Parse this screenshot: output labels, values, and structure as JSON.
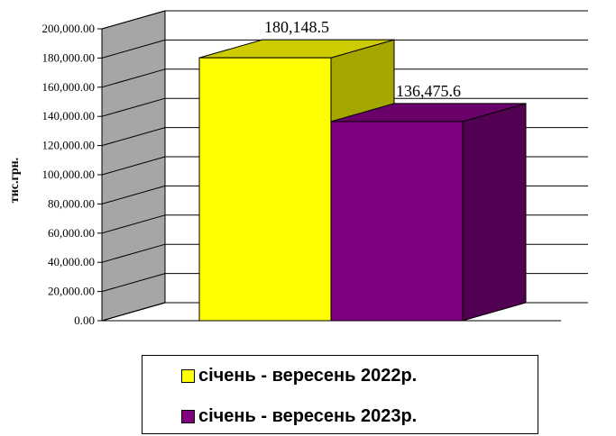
{
  "chart_data": {
    "type": "bar",
    "three_d": true,
    "categories": [
      ""
    ],
    "series": [
      {
        "name": "січень - вересень 2022р.",
        "values": [
          180148.5
        ],
        "label": "180,148.5",
        "color": "#ffff00",
        "side_color": "#a6a600",
        "top_color": "#cccc00"
      },
      {
        "name": "січень - вересень 2023р.",
        "values": [
          136475.6
        ],
        "label": "136,475.6",
        "color": "#800080",
        "side_color": "#520052",
        "top_color": "#6a006a"
      }
    ],
    "ylabel": "тис.грн.",
    "ylim": [
      0,
      200000
    ],
    "yticks": [
      0,
      20000,
      40000,
      60000,
      80000,
      100000,
      120000,
      140000,
      160000,
      180000,
      200000
    ],
    "ytick_labels": [
      "0.00",
      "20,000.00",
      "40,000.00",
      "60,000.00",
      "80,000.00",
      "100,000.00",
      "120,000.00",
      "140,000.00",
      "160,000.00",
      "180,000.00",
      "200,000.00"
    ],
    "grid": true,
    "wall_color": "#a6a6a6",
    "legend_position": "bottom"
  }
}
